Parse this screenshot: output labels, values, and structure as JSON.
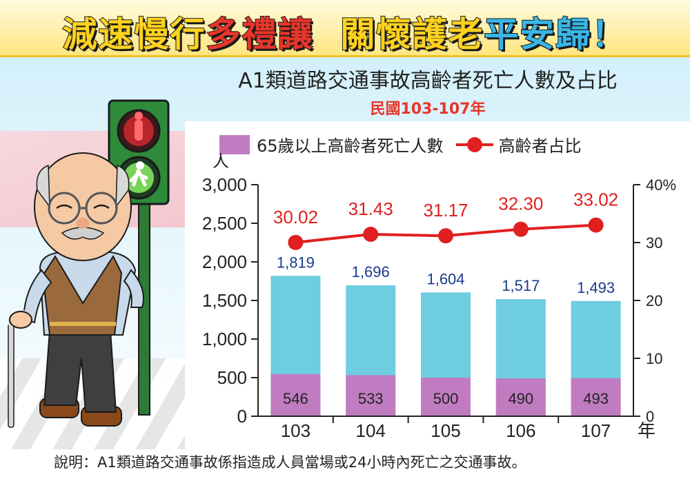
{
  "banner": {
    "part1": "減速慢行",
    "part2": "多禮讓",
    "part3": "關懷護老",
    "part4": "平安歸！"
  },
  "footnote": "說明：A1類道路交通事故係指造成人員當場或24小時內死亡之交通事故。",
  "colors": {
    "bar_elderly": "#c17cc1",
    "bar_total": "#6ecde0",
    "line": "#e01f1f",
    "total_label": "#1a3a8c",
    "banner_yellow": "#ffd21f",
    "banner_red": "#e8352a",
    "banner_blue": "#38b6e8"
  },
  "chart_data": {
    "type": "bar",
    "title": "A1類道路交通事故高齡者死亡人數及占比",
    "subtitle": "民國103-107年",
    "categories": [
      "103",
      "104",
      "105",
      "106",
      "107"
    ],
    "xlabel": "年",
    "ylabel": "人",
    "ylim": [
      0,
      3000
    ],
    "yticks": [
      "0",
      "500",
      "1,000",
      "1,500",
      "2,000",
      "2,500",
      "3,000"
    ],
    "y2ticks": [
      "0",
      "10",
      "20",
      "30",
      "40%"
    ],
    "y2lim": [
      0,
      40
    ],
    "series": [
      {
        "kind": "bar",
        "role": "total",
        "values": [
          1819,
          1696,
          1604,
          1517,
          1493
        ],
        "labels": [
          "1,819",
          "1,696",
          "1,604",
          "1,517",
          "1,493"
        ]
      },
      {
        "kind": "bar",
        "role": "elderly",
        "name": "65歲以上高齡者死亡人數",
        "values": [
          546,
          533,
          500,
          490,
          493
        ],
        "labels": [
          "546",
          "533",
          "500",
          "490",
          "493"
        ]
      },
      {
        "kind": "line",
        "axis": "right",
        "name": "高齡者占比",
        "values": [
          30.02,
          31.43,
          31.17,
          32.3,
          33.02
        ],
        "labels": [
          "30.02",
          "31.43",
          "31.17",
          "32.30",
          "33.02"
        ]
      }
    ],
    "grid": false,
    "legend": "top"
  }
}
